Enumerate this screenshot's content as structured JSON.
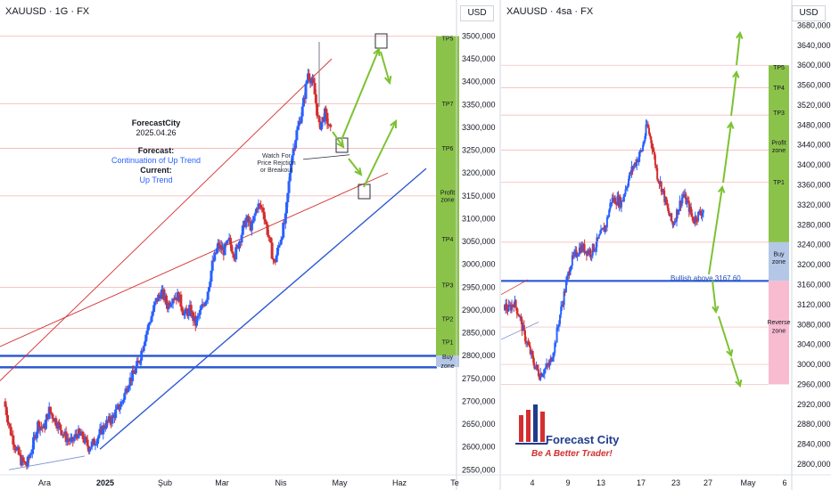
{
  "left_panel": {
    "title": "XAUUSD · 1G · FX",
    "currency": "USD",
    "annotation": {
      "name": "ForecastCity",
      "date": "2025.04.26",
      "forecast_label": "Forecast:",
      "forecast_value": "Continuation of Up Trend",
      "current_label": "Current:",
      "current_value": "Up Trend"
    },
    "note": [
      "Watch For",
      "Price Rejction",
      "or Breakout"
    ],
    "zones": [
      "TP7",
      "TP6",
      "Profit",
      "zone",
      "TP4",
      "TP3",
      "TP2",
      "TP1",
      "Buy",
      "zone"
    ],
    "top_zone_label": "TP5"
  },
  "right_panel": {
    "title": "XAUUSD · 4sa · FX",
    "currency": "USD",
    "bullish_label": "Bullish above 3167.60",
    "zones": [
      "TP5",
      "TP4",
      "TP3",
      "Profit",
      "zone",
      "TP1",
      "Buy",
      "zone",
      "Reverse",
      "zone"
    ]
  },
  "logo": {
    "name": "Forecast City",
    "slogan": "Be A Better Trader!"
  },
  "colors": {
    "up": "#2962ff",
    "down": "#d32f2f",
    "profit": "#8bc34a",
    "buy": "#b4c7e7",
    "reverse": "#f8bbd0",
    "arrow": "#7cc232"
  },
  "chart_data": [
    {
      "type": "candlestick",
      "symbol": "XAUUSD",
      "timeframe": "1G",
      "y_ticks": [
        2550,
        2600,
        2650,
        2700,
        2750,
        2800,
        2850,
        2900,
        2950,
        3000,
        3050,
        3100,
        3150,
        3200,
        3250,
        3300,
        3350,
        3400,
        3450,
        3500
      ],
      "ylim": [
        2535,
        3540
      ],
      "x_tick_labels": [
        "Ara",
        "2025",
        "Şub",
        "Mar",
        "Nis",
        "May",
        "Haz",
        "Te"
      ],
      "close_path": [
        2700,
        2640,
        2600,
        2570,
        2560,
        2600,
        2650,
        2640,
        2680,
        2660,
        2640,
        2620,
        2610,
        2630,
        2620,
        2600,
        2610,
        2630,
        2650,
        2660,
        2680,
        2700,
        2740,
        2760,
        2790,
        2840,
        2880,
        2920,
        2940,
        2910,
        2930,
        2930,
        2890,
        2900,
        2870,
        2900,
        2930,
        3000,
        3040,
        3030,
        3050,
        3020,
        3060,
        3100,
        3080,
        3130,
        3120,
        3060,
        3000,
        3050,
        3100,
        3230,
        3290,
        3340,
        3420,
        3390,
        3300,
        3330,
        3290
      ],
      "levels": [
        3500,
        3352,
        3254,
        3150,
        2950,
        2860,
        2800,
        2775
      ],
      "zones": [
        {
          "name": "TP7",
          "value": 3352
        },
        {
          "name": "TP6",
          "value": 3254
        },
        {
          "name": "Profit zone",
          "value": 3150
        },
        {
          "name": "TP4",
          "value": 3055
        },
        {
          "name": "TP3",
          "value": 2955
        },
        {
          "name": "TP2",
          "value": 2880
        },
        {
          "name": "TP1",
          "value": 2830
        },
        {
          "name": "Buy zone",
          "range": [
            2775,
            2800
          ]
        }
      ]
    },
    {
      "type": "candlestick",
      "symbol": "XAUUSD",
      "timeframe": "4sa",
      "y_ticks": [
        2800,
        2840,
        2880,
        2920,
        2960,
        3000,
        3040,
        3080,
        3120,
        3160,
        3200,
        3240,
        3280,
        3320,
        3360,
        3400,
        3440,
        3480,
        3520,
        3560,
        3600,
        3640,
        3680
      ],
      "ylim": [
        2775,
        3695
      ],
      "x_tick_labels": [
        "4",
        "9",
        "13",
        "17",
        "23",
        "27",
        "May",
        "6"
      ],
      "close_path": [
        3120,
        3110,
        3125,
        3100,
        3060,
        3030,
        3000,
        2980,
        2990,
        3000,
        3040,
        3100,
        3150,
        3200,
        3220,
        3235,
        3230,
        3225,
        3240,
        3260,
        3280,
        3330,
        3330,
        3325,
        3360,
        3390,
        3410,
        3430,
        3480,
        3440,
        3380,
        3350,
        3310,
        3280,
        3310,
        3340,
        3320,
        3290,
        3300,
        3310
      ],
      "bullish_above": 3167.6,
      "zones": [
        {
          "name": "TP5",
          "value": 3600
        },
        {
          "name": "TP4",
          "value": 3555
        },
        {
          "name": "TP3",
          "value": 3500
        },
        {
          "name": "Profit zone",
          "value": 3430
        },
        {
          "name": "TP1",
          "value": 3365
        },
        {
          "name": "Buy zone",
          "range": [
            3167.6,
            3245
          ]
        },
        {
          "name": "Reverse zone",
          "range": [
            2960,
            3167.6
          ]
        }
      ]
    }
  ]
}
